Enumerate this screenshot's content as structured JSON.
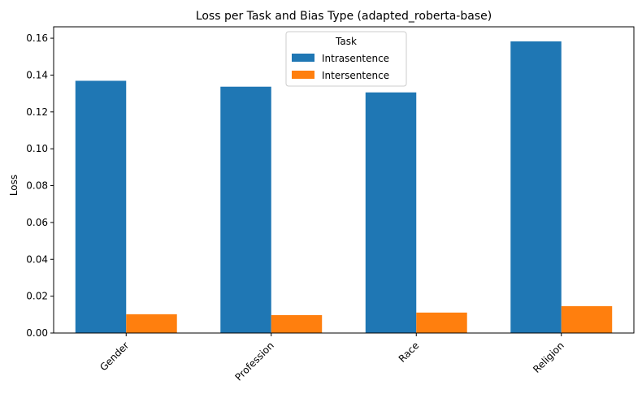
{
  "chart_data": {
    "type": "bar",
    "title": "Loss per Task and Bias Type (adapted_roberta-base)",
    "xlabel": "",
    "ylabel": "Loss",
    "categories": [
      "Gender",
      "Profession",
      "Race",
      "Religion"
    ],
    "series": [
      {
        "name": "Intrasentence",
        "values": [
          0.1369,
          0.1337,
          0.1306,
          0.1583
        ],
        "color": "#1f77b4"
      },
      {
        "name": "Intersentence",
        "values": [
          0.0102,
          0.0097,
          0.0111,
          0.0146
        ],
        "color": "#ff7f0e"
      }
    ],
    "ylim": [
      0,
      0.1662
    ],
    "yticks": [
      "0.00",
      "0.02",
      "0.04",
      "0.06",
      "0.08",
      "0.10",
      "0.12",
      "0.14",
      "0.16"
    ],
    "legend": {
      "title": "Task",
      "placement": "top-center"
    },
    "grid": false
  }
}
